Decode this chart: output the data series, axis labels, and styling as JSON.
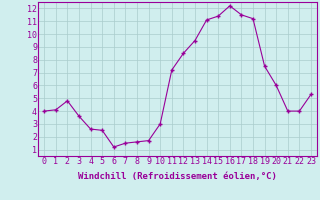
{
  "x": [
    0,
    1,
    2,
    3,
    4,
    5,
    6,
    7,
    8,
    9,
    10,
    11,
    12,
    13,
    14,
    15,
    16,
    17,
    18,
    19,
    20,
    21,
    22,
    23
  ],
  "y": [
    4.0,
    4.1,
    4.8,
    3.6,
    2.6,
    2.5,
    1.2,
    1.5,
    1.6,
    1.7,
    3.0,
    7.2,
    8.5,
    9.5,
    11.1,
    11.4,
    12.2,
    11.5,
    11.2,
    7.5,
    6.0,
    4.0,
    4.0,
    5.3
  ],
  "xlabel": "Windchill (Refroidissement éolien,°C)",
  "xlim": [
    -0.5,
    23.5
  ],
  "ylim": [
    0.5,
    12.5
  ],
  "xticks": [
    0,
    1,
    2,
    3,
    4,
    5,
    6,
    7,
    8,
    9,
    10,
    11,
    12,
    13,
    14,
    15,
    16,
    17,
    18,
    19,
    20,
    21,
    22,
    23
  ],
  "yticks": [
    1,
    2,
    3,
    4,
    5,
    6,
    7,
    8,
    9,
    10,
    11,
    12
  ],
  "line_color": "#990099",
  "marker": "+",
  "bg_color": "#d0eeee",
  "grid_color": "#aacccc",
  "label_color": "#990099",
  "tick_label_color": "#990099",
  "xlabel_fontsize": 6.5,
  "tick_fontsize": 6.0,
  "spine_color": "#990099"
}
